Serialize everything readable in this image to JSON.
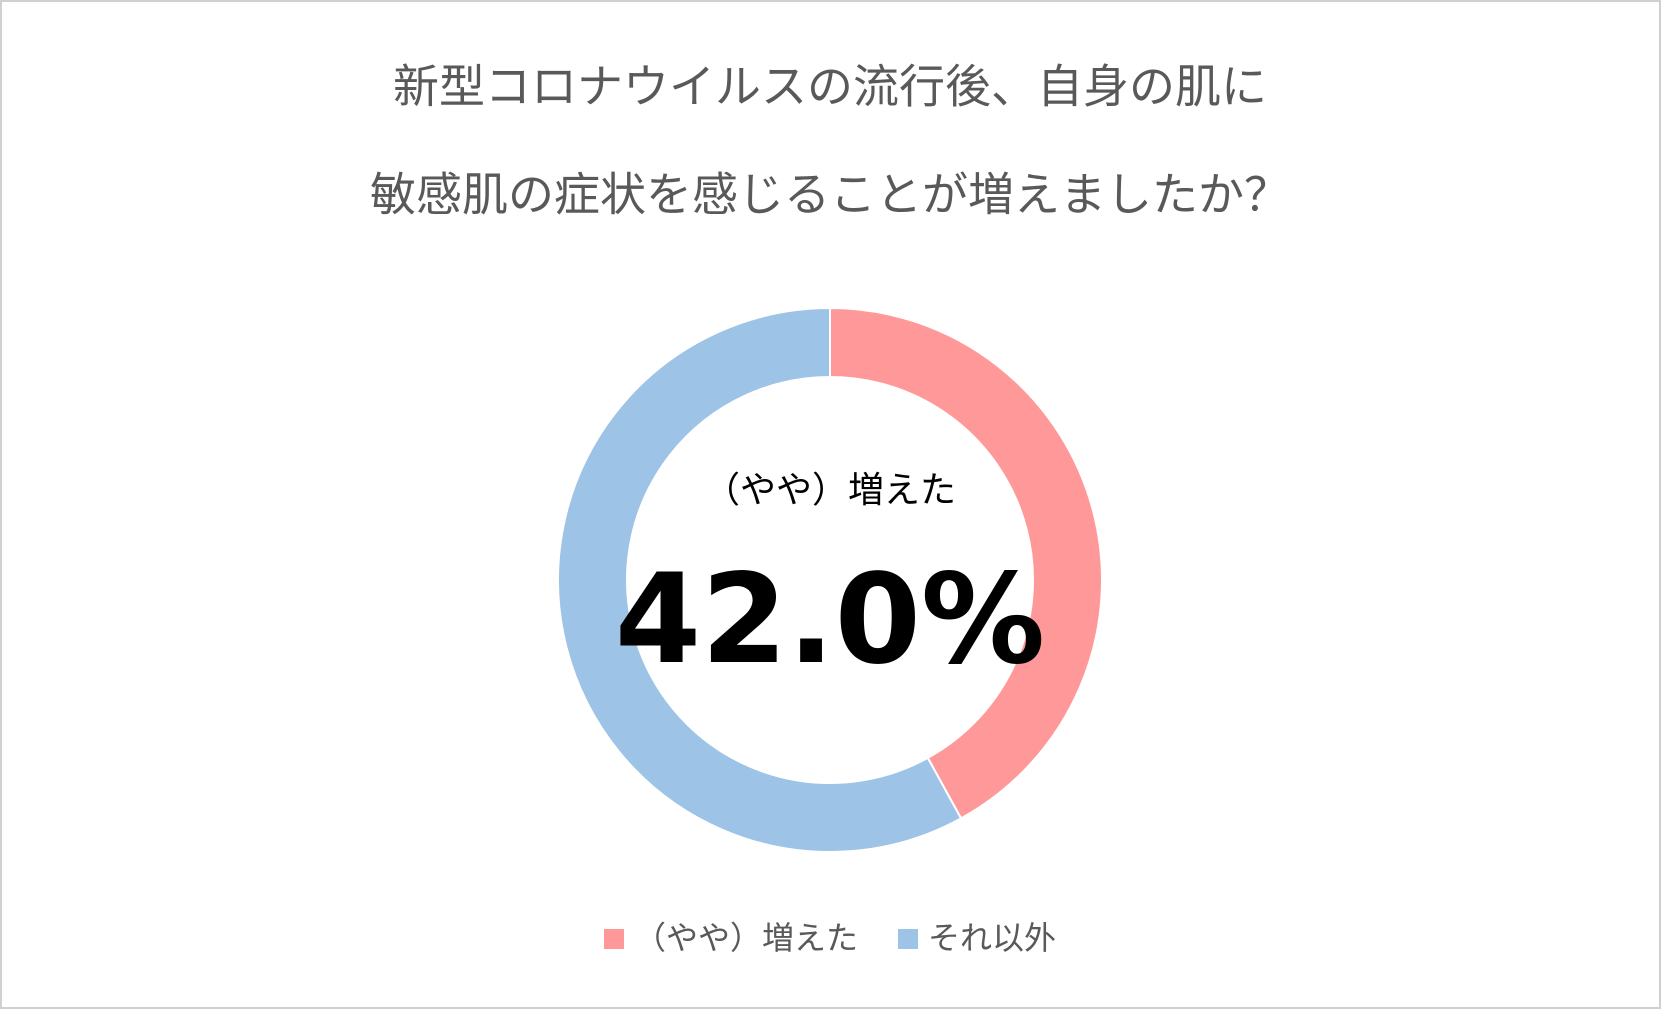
{
  "chart_data": {
    "type": "donut",
    "title": [
      "新型コロナウイルスの流行後、自身の肌に",
      "敏感肌の症状を感じることが増えましたか？"
    ],
    "categories": [
      "（やや）増えた",
      "それ以外"
    ],
    "values": [
      42.0,
      58.0
    ],
    "value_labels": [
      "42.0%",
      null
    ],
    "colors": [
      "#ff9999",
      "#9dc3e6"
    ],
    "legend": "bottom"
  }
}
